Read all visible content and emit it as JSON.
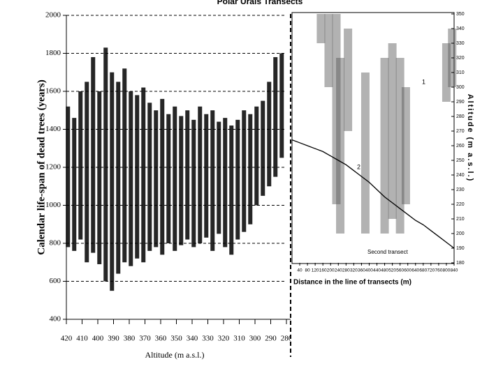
{
  "chart_data": [
    {
      "type": "range-bar",
      "title": "Polar Urals Transects",
      "ylabel": "Calendar life-span of dead trees (years)",
      "xlabel": "Altitude (m a.s.l.)",
      "x": [
        419,
        415,
        411,
        407,
        403,
        399,
        395,
        391,
        387,
        383,
        379,
        375,
        371,
        367,
        363,
        359,
        355,
        351,
        347,
        343,
        339,
        335,
        331,
        327,
        323,
        319,
        315,
        311,
        307,
        303,
        299,
        295,
        291,
        287,
        283
      ],
      "low": [
        780,
        760,
        820,
        700,
        750,
        690,
        600,
        550,
        640,
        700,
        680,
        720,
        700,
        760,
        780,
        740,
        800,
        760,
        790,
        820,
        780,
        800,
        830,
        760,
        850,
        780,
        740,
        820,
        860,
        900,
        1000,
        1050,
        1100,
        1150,
        1250
      ],
      "high": [
        1520,
        1460,
        1600,
        1650,
        1780,
        1600,
        1830,
        1700,
        1650,
        1720,
        1600,
        1580,
        1620,
        1540,
        1500,
        1560,
        1480,
        1520,
        1470,
        1500,
        1450,
        1520,
        1480,
        1500,
        1440,
        1460,
        1420,
        1450,
        1500,
        1480,
        1520,
        1550,
        1650,
        1780,
        1800
      ],
      "color": "#000000",
      "xlim": [
        420,
        280
      ],
      "xticks": [
        420,
        410,
        400,
        390,
        380,
        370,
        360,
        350,
        340,
        330,
        320,
        310,
        300,
        290,
        280
      ],
      "ylim": [
        400,
        2000
      ],
      "yticks": [
        400,
        600,
        800,
        1000,
        1200,
        1400,
        1600,
        1800,
        2000
      ],
      "grid": true
    },
    {
      "type": "line",
      "xlabel": "Distance in the line of transects (m)",
      "ylabel": "Altitude (m a.s.l.)",
      "x": [
        0,
        40,
        80,
        120,
        160,
        200,
        240,
        280,
        320,
        360,
        400,
        440,
        480,
        520,
        560,
        600,
        640,
        680,
        720,
        760,
        800,
        840
      ],
      "values": [
        264,
        262,
        260,
        258,
        256,
        253,
        250,
        247,
        243,
        239,
        235,
        230,
        225,
        221,
        217,
        213,
        209,
        206,
        202,
        198,
        194,
        190
      ],
      "color": "#000000",
      "bars": {
        "x": [
          150,
          190,
          230,
          250,
          290,
          380,
          480,
          520,
          560,
          590,
          800,
          830
        ],
        "low": [
          330,
          300,
          220,
          200,
          270,
          200,
          200,
          210,
          200,
          220,
          290,
          300
        ],
        "high": [
          350,
          350,
          350,
          320,
          340,
          310,
          320,
          330,
          320,
          300,
          330,
          340
        ],
        "color": "#555555"
      },
      "annotations": [
        "1",
        "2",
        "Second transect"
      ],
      "xlim": [
        0,
        840
      ],
      "xticks": [
        40,
        80,
        120,
        160,
        200,
        240,
        280,
        320,
        360,
        400,
        440,
        480,
        520,
        560,
        600,
        640,
        680,
        720,
        760,
        800,
        840
      ],
      "ylim": [
        180,
        350
      ],
      "yticks": [
        180,
        190,
        200,
        210,
        220,
        230,
        240,
        250,
        260,
        270,
        280,
        290,
        300,
        310,
        320,
        330,
        340,
        350
      ]
    }
  ]
}
